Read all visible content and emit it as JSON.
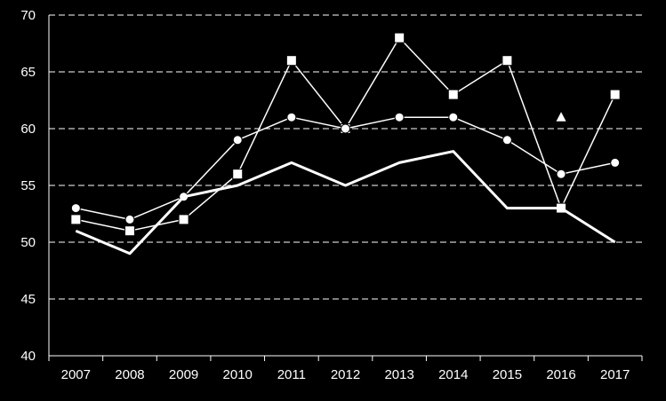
{
  "chart_data": {
    "type": "line",
    "title": "",
    "xlabel": "",
    "ylabel": "",
    "categories": [
      "2007",
      "2008",
      "2009",
      "2010",
      "2011",
      "2012",
      "2013",
      "2014",
      "2015",
      "2016",
      "2017"
    ],
    "ylim": [
      40,
      70
    ],
    "yticks": [
      "40",
      "45",
      "50",
      "55",
      "60",
      "65",
      "70"
    ],
    "grid": "horizontal dashed",
    "legend": "none",
    "colors": {
      "background": "#000000",
      "foreground": "#ffffff"
    },
    "series": [
      {
        "marker": "square",
        "values": [
          52,
          51,
          52,
          56,
          66,
          60,
          68,
          63,
          66,
          53,
          63
        ]
      },
      {
        "marker": "circle",
        "values": [
          53,
          52,
          54,
          59,
          61,
          60,
          61,
          61,
          59,
          56,
          57
        ]
      },
      {
        "marker": "none",
        "line": "thick",
        "values": [
          51,
          49,
          54,
          55,
          57,
          55,
          57,
          58,
          53,
          53,
          50
        ]
      },
      {
        "marker": "triangle",
        "line": "none",
        "values": [
          null,
          null,
          null,
          null,
          null,
          null,
          null,
          null,
          null,
          61,
          null
        ]
      }
    ]
  }
}
